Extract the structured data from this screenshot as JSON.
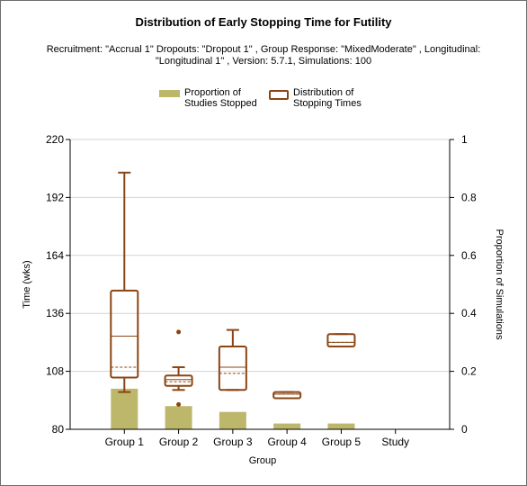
{
  "chart_data": {
    "type": "box",
    "title": "Distribution of Early Stopping Time for Futility",
    "subtitle_line1": "Recruitment: \"Accrual 1\" Dropouts: \"Dropout 1\" , Group Response: \"MixedModerate\" , Longitudinal:",
    "subtitle_line2": "\"Longitudinal 1\" , Version: 5.7.1, Simulations: 100",
    "xlabel": "Group",
    "ylabel_left": "Time (wks)",
    "ylabel_right": "Proportion of Simulations",
    "y_left_range": [
      80,
      220
    ],
    "y_left_ticks": [
      "220",
      "192",
      "164",
      "136",
      "108",
      "80"
    ],
    "y_right_range": [
      0,
      1
    ],
    "y_right_ticks": [
      "1",
      "0.8",
      "0.6",
      "0.4",
      "0.2",
      "0"
    ],
    "grid": true,
    "legend_position": "top-center",
    "colors": {
      "bar": "#bdb76b",
      "box": "#8b4513",
      "grid": "#d3d3d3"
    },
    "categories": [
      "Group 1",
      "Group 2",
      "Group 3",
      "Group 4",
      "Group 5",
      "Study"
    ],
    "bar_series": {
      "name": "Proportion of Studies Stopped",
      "legend_line1": "Proportion of",
      "legend_line2": "Studies Stopped",
      "values": [
        0.14,
        0.08,
        0.06,
        0.02,
        0.02,
        0
      ]
    },
    "box_series": {
      "name": "Distribution of Stopping Times",
      "legend_line1": "Distribution of",
      "legend_line2": "Stopping Times",
      "boxes": [
        {
          "min": 98,
          "q1": 105,
          "median": 125,
          "mean": 110,
          "q3": 147,
          "max": 204,
          "outliers": []
        },
        {
          "min": 99,
          "q1": 101,
          "median": 104,
          "mean": 103,
          "q3": 106,
          "max": 110,
          "outliers": [
            127,
            92
          ]
        },
        {
          "min": 99,
          "q1": 99,
          "median": 110,
          "mean": 107,
          "q3": 120,
          "max": 128,
          "outliers": []
        },
        {
          "min": 95,
          "q1": 95,
          "median": 97,
          "mean": 97,
          "q3": 98,
          "max": 98,
          "outliers": []
        },
        {
          "min": 120,
          "q1": 120,
          "median": 122,
          "mean": 122,
          "q3": 126,
          "max": 126,
          "outliers": []
        },
        null
      ]
    }
  }
}
